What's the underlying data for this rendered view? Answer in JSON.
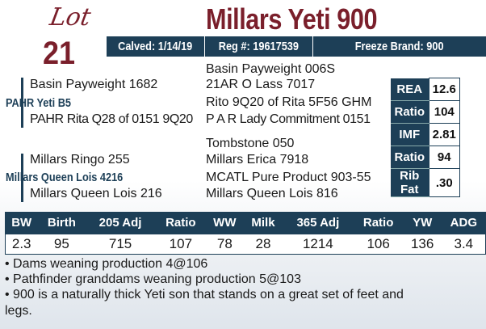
{
  "lot": {
    "label": "Lot",
    "number": "21"
  },
  "title": "Millars Yeti 900",
  "banner": {
    "calved": "Calved: 1/14/19",
    "reg": "Reg #: 19617539",
    "freeze": "Freeze Brand: 900"
  },
  "pedigree": {
    "sire": "PAHR Yeti B5",
    "sire_sire": "Basin Payweight 1682",
    "sire_dam": "PAHR Rita Q28 of 0151 9Q20",
    "sss": "Basin Payweight 006S",
    "ssd": "21AR O Lass 7017",
    "sds": "Rito 9Q20 of Rita 5F56 GHM",
    "sdd": "P A R Lady Commitment 0151",
    "dam": "Millars Queen Lois 4216",
    "dam_sire": "Millars Ringo 255",
    "dam_dam": "Millars Queen Lois 216",
    "dss": "Tombstone 050",
    "dsd": "Millars Erica 7918",
    "dds": "MCATL Pure Product 903-55",
    "ddd": "Millars Queen Lois 816"
  },
  "carcass": [
    {
      "label": "REA",
      "value": "12.6"
    },
    {
      "label": "Ratio",
      "value": "104"
    },
    {
      "label": "IMF",
      "value": "2.81"
    },
    {
      "label": "Ratio",
      "value": "94"
    },
    {
      "label": "Rib Fat",
      "value": ".30"
    }
  ],
  "performance": {
    "headers": [
      "BW",
      "Birth",
      "205 Adj",
      "Ratio",
      "WW",
      "Milk",
      "365 Adj",
      "Ratio",
      "YW",
      "ADG"
    ],
    "values": [
      "2.3",
      "95",
      "715",
      "107",
      "78",
      "28",
      "1214",
      "106",
      "136",
      "3.4"
    ]
  },
  "notes": [
    "• Dams weaning production 4@106",
    "• Pathfinder granddams weaning production 5@103",
    "• 900 is a naturally thick Yeti son that stands on a great set of feet and",
    "legs."
  ]
}
